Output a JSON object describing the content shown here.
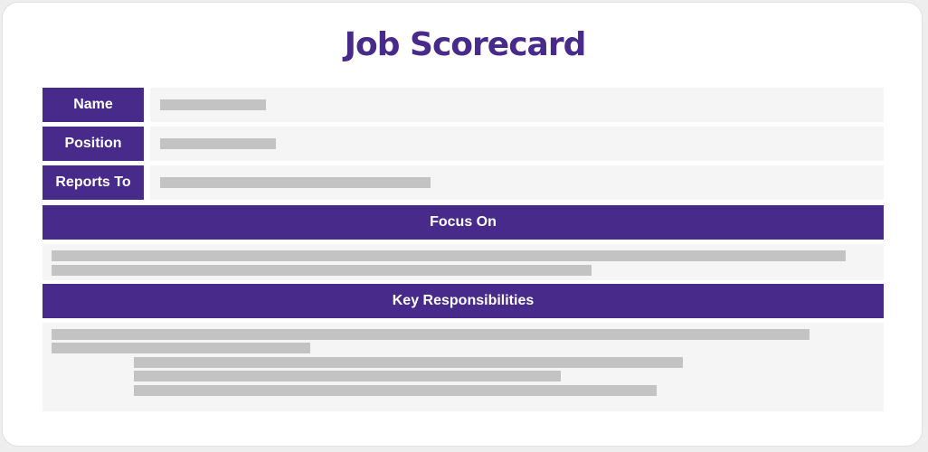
{
  "title": "Job Scorecard",
  "colors": {
    "accent": "#472a8a",
    "field_background": "#f5f5f5",
    "placeholder_bar": "#c3c3c3"
  },
  "fields": [
    {
      "label": "Name"
    },
    {
      "label": "Position"
    },
    {
      "label": "Reports To"
    }
  ],
  "sections": [
    {
      "heading": "Focus On"
    },
    {
      "heading": "Key Responsibilities"
    }
  ]
}
